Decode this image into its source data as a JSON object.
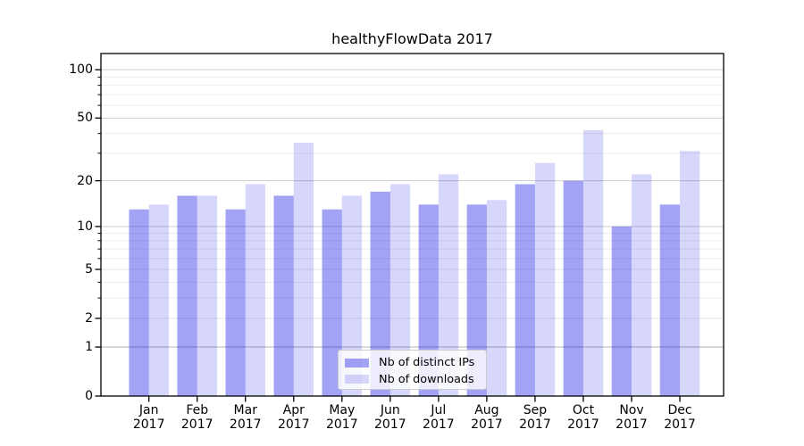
{
  "chart_data": {
    "type": "bar",
    "title": "healthyFlowData 2017",
    "categories": [
      "Jan 2017",
      "Feb 2017",
      "Mar 2017",
      "Apr 2017",
      "May 2017",
      "Jun 2017",
      "Jul 2017",
      "Aug 2017",
      "Sep 2017",
      "Oct 2017",
      "Nov 2017",
      "Dec 2017"
    ],
    "series": [
      {
        "name": "Nb of distinct IPs",
        "color": "#a3a3f6",
        "fill": "rgba(0,0,230,0.36)",
        "values": [
          13,
          16,
          13,
          16,
          13,
          17,
          14,
          14,
          19,
          20,
          10,
          14
        ]
      },
      {
        "name": "Nb of downloads",
        "color": "#d9d9fb",
        "fill": "rgba(0,0,230,0.155)",
        "values": [
          14,
          16,
          19,
          35,
          16,
          19,
          22,
          15,
          26,
          42,
          22,
          31
        ]
      }
    ],
    "y_axis": {
      "scale": "symlog",
      "ticks": [
        100,
        50,
        20,
        10,
        5,
        2,
        1,
        0
      ],
      "minor_ticks": [
        90,
        80,
        70,
        60,
        40,
        30,
        9,
        8,
        7,
        6,
        4,
        3
      ],
      "max": 126
    },
    "x_axis": {
      "tick_line1": [
        "Jan",
        "Feb",
        "Mar",
        "Apr",
        "May",
        "Jun",
        "Jul",
        "Aug",
        "Sep",
        "Oct",
        "Nov",
        "Dec"
      ],
      "tick_line2": "2017"
    },
    "grid": true,
    "legend_position": "bottom-center",
    "colors": {
      "frame": "#000000",
      "grid_major": "#cfcfcf",
      "grid_soft": "#e6e6e6",
      "grid_minor": "#ededed",
      "grid_one": "#b3b3b3"
    }
  }
}
